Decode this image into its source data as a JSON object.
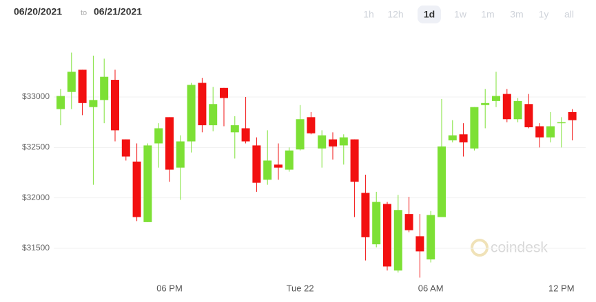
{
  "chart_data": {
    "type": "candlestick",
    "date_from": "06/20/2021",
    "range_separator": "to",
    "date_to": "06/21/2021",
    "ranges": [
      "1h",
      "12h",
      "1d",
      "1w",
      "1m",
      "3m",
      "1y",
      "all"
    ],
    "selected_range": "1d",
    "watermark": "coindesk",
    "categories": [
      null,
      null,
      null,
      null,
      null,
      null,
      null,
      null,
      null,
      null,
      "06 PM",
      null,
      null,
      null,
      null,
      null,
      null,
      null,
      null,
      null,
      null,
      null,
      "Tue 22",
      null,
      null,
      null,
      null,
      null,
      null,
      null,
      null,
      null,
      null,
      null,
      "06 AM",
      null,
      null,
      null,
      null,
      null,
      null,
      null,
      null,
      null,
      null,
      null,
      "12 PM",
      null
    ],
    "open": [
      32880,
      33050,
      33270,
      32900,
      32970,
      33170,
      32580,
      32360,
      31760,
      32540,
      32800,
      32300,
      32560,
      33140,
      32720,
      33090,
      32650,
      32690,
      32520,
      32180,
      32330,
      32280,
      32480,
      32800,
      32490,
      32580,
      32520,
      32580,
      32050,
      31540,
      31940,
      31280,
      31840,
      31620,
      31390,
      31810,
      32570,
      32630,
      32490,
      32920,
      32960,
      33030,
      32780,
      32930,
      32710,
      32600,
      32740,
      32850
    ],
    "high": [
      33080,
      33440,
      33270,
      33410,
      33380,
      33270,
      32580,
      32540,
      32540,
      32740,
      32800,
      32620,
      33140,
      33190,
      33100,
      33090,
      32810,
      33000,
      32600,
      32670,
      32540,
      32500,
      32920,
      32850,
      32670,
      32650,
      32630,
      32580,
      32230,
      32060,
      31960,
      32030,
      32010,
      31840,
      31870,
      32980,
      32770,
      32740,
      32900,
      33080,
      33250,
      33080,
      32990,
      33030,
      32740,
      32850,
      32800,
      32880
    ],
    "low": [
      32720,
      32880,
      32820,
      32130,
      32740,
      32560,
      32370,
      31770,
      31760,
      32300,
      32160,
      31980,
      32450,
      32650,
      32660,
      32710,
      32390,
      32540,
      32060,
      32130,
      32180,
      32260,
      32470,
      32630,
      32300,
      32380,
      32330,
      31810,
      31380,
      31510,
      31280,
      31260,
      31660,
      31210,
      31360,
      31810,
      32550,
      32410,
      32470,
      32690,
      32900,
      32750,
      32750,
      32690,
      32500,
      32550,
      32500,
      32570
    ],
    "close": [
      33010,
      33250,
      32940,
      32970,
      33200,
      32670,
      32410,
      31810,
      32520,
      32690,
      32280,
      32560,
      33120,
      32720,
      32930,
      32990,
      32720,
      32560,
      32150,
      32370,
      32300,
      32470,
      32780,
      32640,
      32620,
      32510,
      32600,
      32160,
      31610,
      31960,
      31320,
      31880,
      31680,
      31470,
      31830,
      32510,
      32620,
      32550,
      32900,
      32940,
      33010,
      32780,
      32960,
      32700,
      32600,
      32710,
      32750,
      32770
    ],
    "up_color": "#7de035",
    "down_color": "#f21010",
    "ylim": [
      31200,
      33600
    ],
    "yticks": [
      {
        "value": 31500,
        "label": "$31500"
      },
      {
        "value": 32000,
        "label": "$32000"
      },
      {
        "value": 32500,
        "label": "$32500"
      },
      {
        "value": 33000,
        "label": "$33000"
      }
    ],
    "grid": true
  }
}
